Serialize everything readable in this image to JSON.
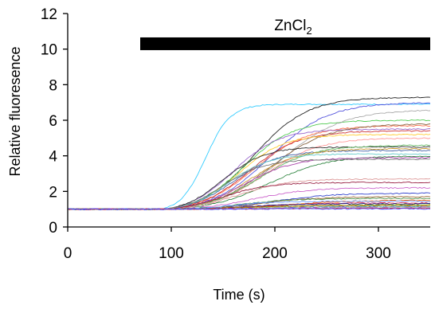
{
  "chart_data": {
    "type": "line",
    "title": "",
    "xlabel": "Time (s)",
    "ylabel": "Relative fluoresence",
    "xlim": [
      0,
      350
    ],
    "ylim": [
      0,
      12
    ],
    "xticks": [
      0,
      100,
      200,
      300
    ],
    "yticks": [
      0,
      2,
      4,
      6,
      8,
      10,
      12
    ],
    "grid": false,
    "legend": "none",
    "annotation": {
      "label_main": "ZnCl",
      "label_sub": "2",
      "bar_x_start": 70,
      "bar_x_end": 350,
      "bar_y": 10.3,
      "bar_color": "#000000"
    },
    "baseline": 1.0,
    "series": [
      {
        "onset": 90,
        "plateau": 6.9,
        "half_time": 133,
        "width": 12,
        "color": "#33ccff"
      },
      {
        "onset": 95,
        "plateau": 7.3,
        "half_time": 180,
        "width": 26,
        "color": "#222222"
      },
      {
        "onset": 95,
        "plateau": 7.0,
        "half_time": 195,
        "width": 28,
        "color": "#5555dd"
      },
      {
        "onset": 95,
        "plateau": 6.0,
        "half_time": 170,
        "width": 24,
        "color": "#55cc55"
      },
      {
        "onset": 95,
        "plateau": 6.6,
        "half_time": 205,
        "width": 30,
        "color": "#aaaaaa"
      },
      {
        "onset": 95,
        "plateau": 5.7,
        "half_time": 180,
        "width": 26,
        "color": "#ff7755"
      },
      {
        "onset": 95,
        "plateau": 5.5,
        "half_time": 160,
        "width": 22,
        "color": "#9966cc"
      },
      {
        "onset": 95,
        "plateau": 5.4,
        "half_time": 175,
        "width": 24,
        "color": "#cc3333"
      },
      {
        "onset": 95,
        "plateau": 5.8,
        "half_time": 195,
        "width": 28,
        "color": "#886644"
      },
      {
        "onset": 95,
        "plateau": 5.2,
        "half_time": 165,
        "width": 22,
        "color": "#ffcc33"
      },
      {
        "onset": 95,
        "plateau": 5.0,
        "half_time": 190,
        "width": 26,
        "color": "#ff9999"
      },
      {
        "onset": 95,
        "plateau": 4.5,
        "half_time": 150,
        "width": 20,
        "color": "#333333"
      },
      {
        "onset": 95,
        "plateau": 4.3,
        "half_time": 160,
        "width": 22,
        "color": "#4466aa"
      },
      {
        "onset": 95,
        "plateau": 4.6,
        "half_time": 185,
        "width": 26,
        "color": "#66bb66"
      },
      {
        "onset": 95,
        "plateau": 4.4,
        "half_time": 175,
        "width": 24,
        "color": "#cc9933"
      },
      {
        "onset": 95,
        "plateau": 4.1,
        "half_time": 155,
        "width": 20,
        "color": "#66cccc"
      },
      {
        "onset": 95,
        "plateau": 4.0,
        "half_time": 195,
        "width": 28,
        "color": "#338844"
      },
      {
        "onset": 95,
        "plateau": 3.9,
        "half_time": 170,
        "width": 24,
        "color": "#aa44aa"
      },
      {
        "onset": 95,
        "plateau": 3.8,
        "half_time": 150,
        "width": 20,
        "color": "#777777"
      },
      {
        "onset": 95,
        "plateau": 2.7,
        "half_time": 165,
        "width": 24,
        "color": "#dd9999"
      },
      {
        "onset": 95,
        "plateau": 2.5,
        "half_time": 150,
        "width": 22,
        "color": "#992244"
      },
      {
        "onset": 95,
        "plateau": 2.2,
        "half_time": 180,
        "width": 26,
        "color": "#cc66cc"
      },
      {
        "onset": 95,
        "plateau": 1.9,
        "half_time": 200,
        "width": 28,
        "color": "#3344cc"
      },
      {
        "onset": 95,
        "plateau": 1.7,
        "half_time": 190,
        "width": 26,
        "color": "#996633"
      },
      {
        "onset": 95,
        "plateau": 1.6,
        "half_time": 170,
        "width": 24,
        "color": "#559955"
      },
      {
        "onset": 95,
        "plateau": 1.5,
        "half_time": 210,
        "width": 30,
        "color": "#ff6600"
      },
      {
        "onset": 95,
        "plateau": 1.45,
        "half_time": 160,
        "width": 22,
        "color": "#6699ff"
      },
      {
        "onset": 95,
        "plateau": 1.35,
        "half_time": 185,
        "width": 26,
        "color": "#cc3366"
      },
      {
        "onset": 95,
        "plateau": 1.3,
        "half_time": 175,
        "width": 24,
        "color": "#222288"
      },
      {
        "onset": 95,
        "plateau": 1.25,
        "half_time": 200,
        "width": 28,
        "color": "#88aa22"
      },
      {
        "onset": 95,
        "plateau": 1.2,
        "half_time": 165,
        "width": 22,
        "color": "#aa6600"
      },
      {
        "onset": 95,
        "plateau": 1.15,
        "half_time": 190,
        "width": 26,
        "color": "#44aaaa"
      },
      {
        "onset": 95,
        "plateau": 1.1,
        "half_time": 180,
        "width": 24,
        "color": "#8844cc"
      },
      {
        "onset": 95,
        "plateau": 1.08,
        "half_time": 170,
        "width": 24,
        "color": "#bbbbbb"
      },
      {
        "onset": 95,
        "plateau": 1.05,
        "half_time": 200,
        "width": 28,
        "color": "#dd4444"
      },
      {
        "onset": 95,
        "plateau": 1.02,
        "half_time": 160,
        "width": 22,
        "color": "#4444ff"
      }
    ]
  }
}
